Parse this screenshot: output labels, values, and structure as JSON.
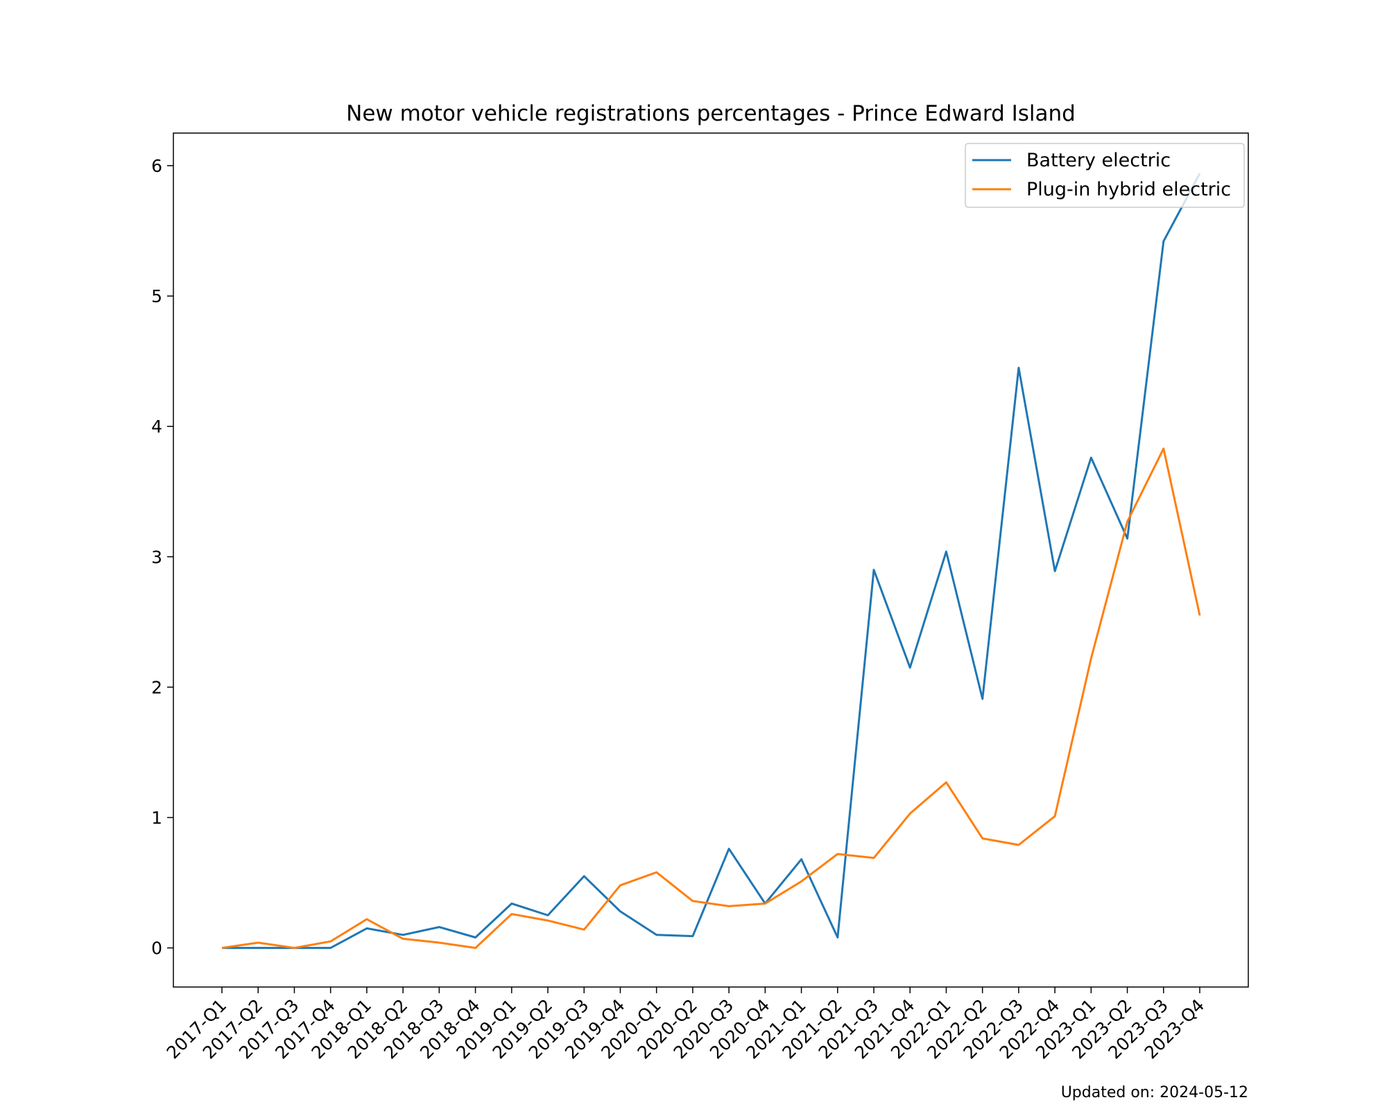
{
  "chart_data": {
    "type": "line",
    "title": "New motor vehicle registrations percentages - Prince Edward Island",
    "xlabel": "",
    "ylabel": "",
    "ylim": [
      -0.3,
      6.25
    ],
    "yticks": [
      0,
      1,
      2,
      3,
      4,
      5,
      6
    ],
    "grid": false,
    "legend_position": "top-right",
    "categories": [
      "2017-Q1",
      "2017-Q2",
      "2017-Q3",
      "2017-Q4",
      "2018-Q1",
      "2018-Q2",
      "2018-Q3",
      "2018-Q4",
      "2019-Q1",
      "2019-Q2",
      "2019-Q3",
      "2019-Q4",
      "2020-Q1",
      "2020-Q2",
      "2020-Q3",
      "2020-Q4",
      "2021-Q1",
      "2021-Q2",
      "2021-Q3",
      "2021-Q4",
      "2022-Q1",
      "2022-Q2",
      "2022-Q3",
      "2022-Q4",
      "2023-Q1",
      "2023-Q2",
      "2023-Q3",
      "2023-Q4"
    ],
    "series": [
      {
        "name": "Battery electric",
        "color": "#1f77b4",
        "values": [
          0.0,
          0.0,
          0.0,
          0.0,
          0.15,
          0.1,
          0.16,
          0.08,
          0.34,
          0.25,
          0.55,
          0.28,
          0.1,
          0.09,
          0.76,
          0.34,
          0.68,
          0.08,
          2.9,
          2.15,
          3.04,
          1.91,
          4.45,
          2.89,
          3.76,
          3.14,
          5.42,
          5.94
        ]
      },
      {
        "name": "Plug-in hybrid electric",
        "color": "#ff7f0e",
        "values": [
          0.0,
          0.04,
          0.0,
          0.05,
          0.22,
          0.07,
          0.04,
          0.0,
          0.26,
          0.21,
          0.14,
          0.48,
          0.58,
          0.36,
          0.32,
          0.34,
          0.51,
          0.72,
          0.69,
          1.03,
          1.27,
          0.84,
          0.79,
          1.01,
          2.22,
          3.27,
          3.83,
          2.55
        ]
      }
    ]
  },
  "footnote": "Updated on: 2024-05-12"
}
